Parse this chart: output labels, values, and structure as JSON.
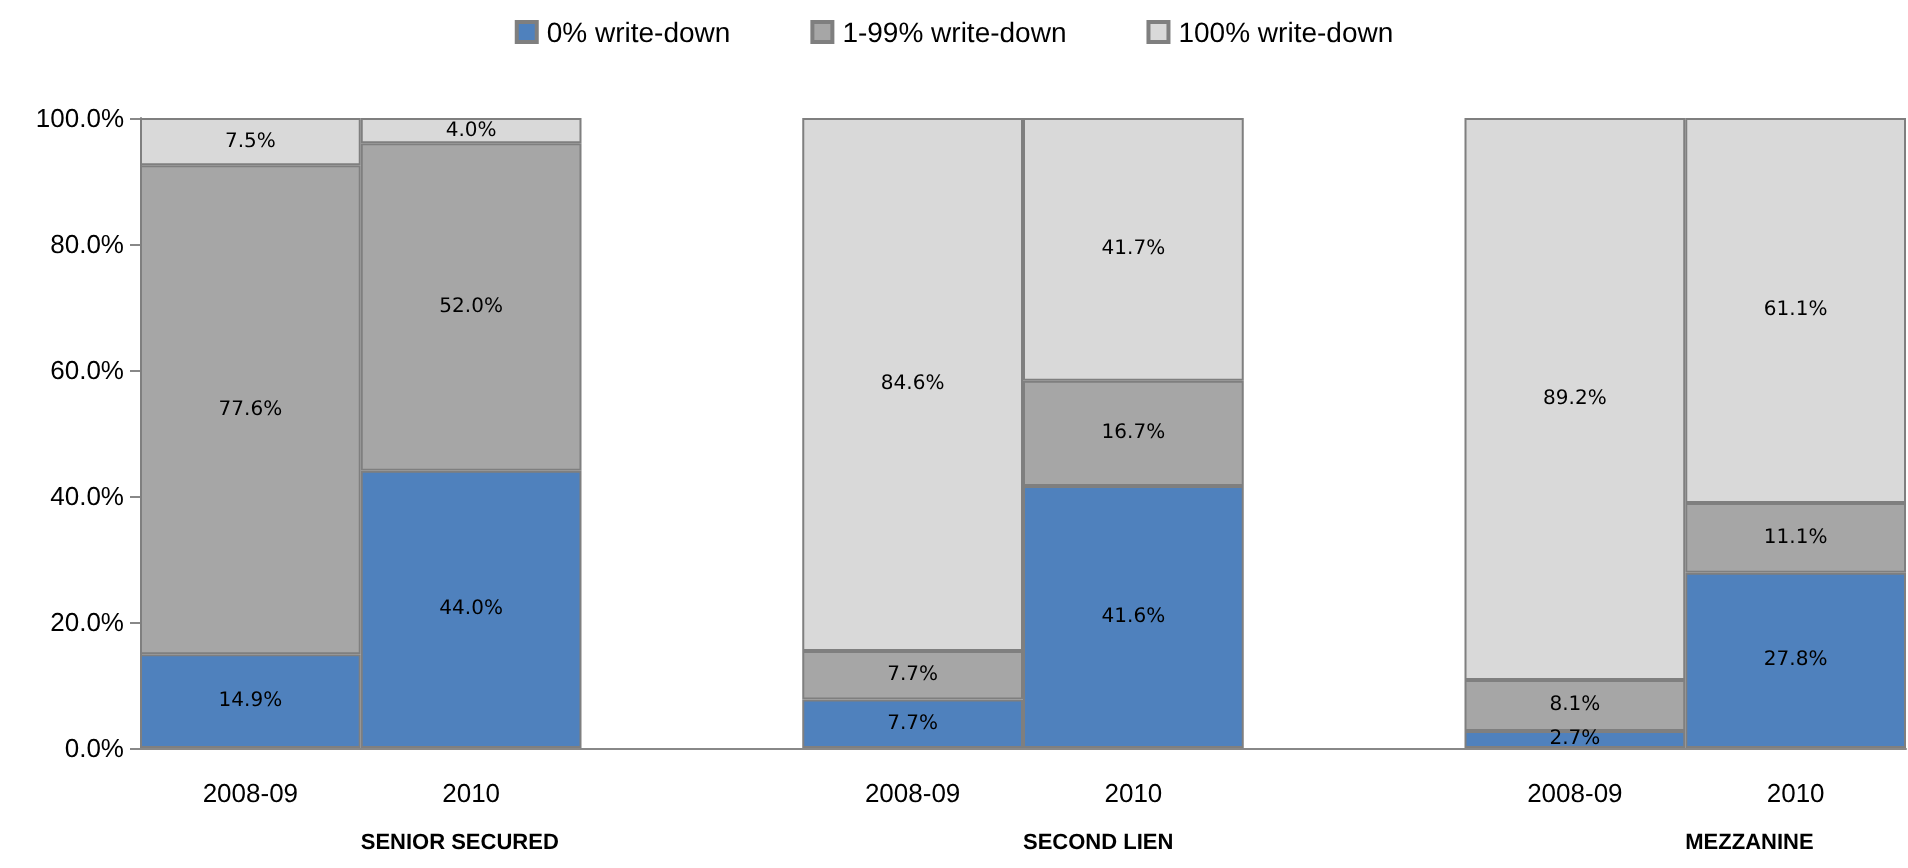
{
  "chart_data": {
    "type": "bar",
    "stacked": true,
    "categories": [
      "2008-09",
      "2010",
      null,
      "2008-09",
      "2010",
      null,
      "2008-09",
      "2010"
    ],
    "series": [
      {
        "name": "0% write-down",
        "color": "#4f81bd",
        "values": [
          14.9,
          44.0,
          null,
          7.7,
          41.6,
          null,
          2.7,
          27.8
        ],
        "value_labels": [
          "14.9%",
          "44.0%",
          null,
          "7.7%",
          "41.6%",
          null,
          "2.7%",
          "27.8%"
        ]
      },
      {
        "name": "1-99% write-down",
        "color": "#a6a6a6",
        "values": [
          77.6,
          52.0,
          null,
          7.7,
          16.7,
          null,
          8.1,
          11.1
        ],
        "value_labels": [
          "77.6%",
          "52.0%",
          null,
          "7.7%",
          "16.7%",
          null,
          "8.1%",
          "11.1%"
        ]
      },
      {
        "name": "100% write-down",
        "color": "#d9d9d9",
        "values": [
          7.5,
          4.0,
          null,
          84.6,
          41.7,
          null,
          89.2,
          61.1
        ],
        "value_labels": [
          "7.5%",
          "4.0%",
          null,
          "84.6%",
          "41.7%",
          null,
          "89.2%",
          "61.1%"
        ]
      }
    ],
    "ylim": [
      0,
      100
    ],
    "yticks": [
      {
        "value": 0,
        "label": "0.0%"
      },
      {
        "value": 20,
        "label": "20.0%"
      },
      {
        "value": 40,
        "label": "40.0%"
      },
      {
        "value": 60,
        "label": "60.0%"
      },
      {
        "value": 80,
        "label": "80.0%"
      },
      {
        "value": 100,
        "label": "100.0%"
      }
    ],
    "annotations": [
      "SENIOR SECURED",
      "SECOND LIEN",
      "MEZZANINE"
    ],
    "legend": "top"
  }
}
